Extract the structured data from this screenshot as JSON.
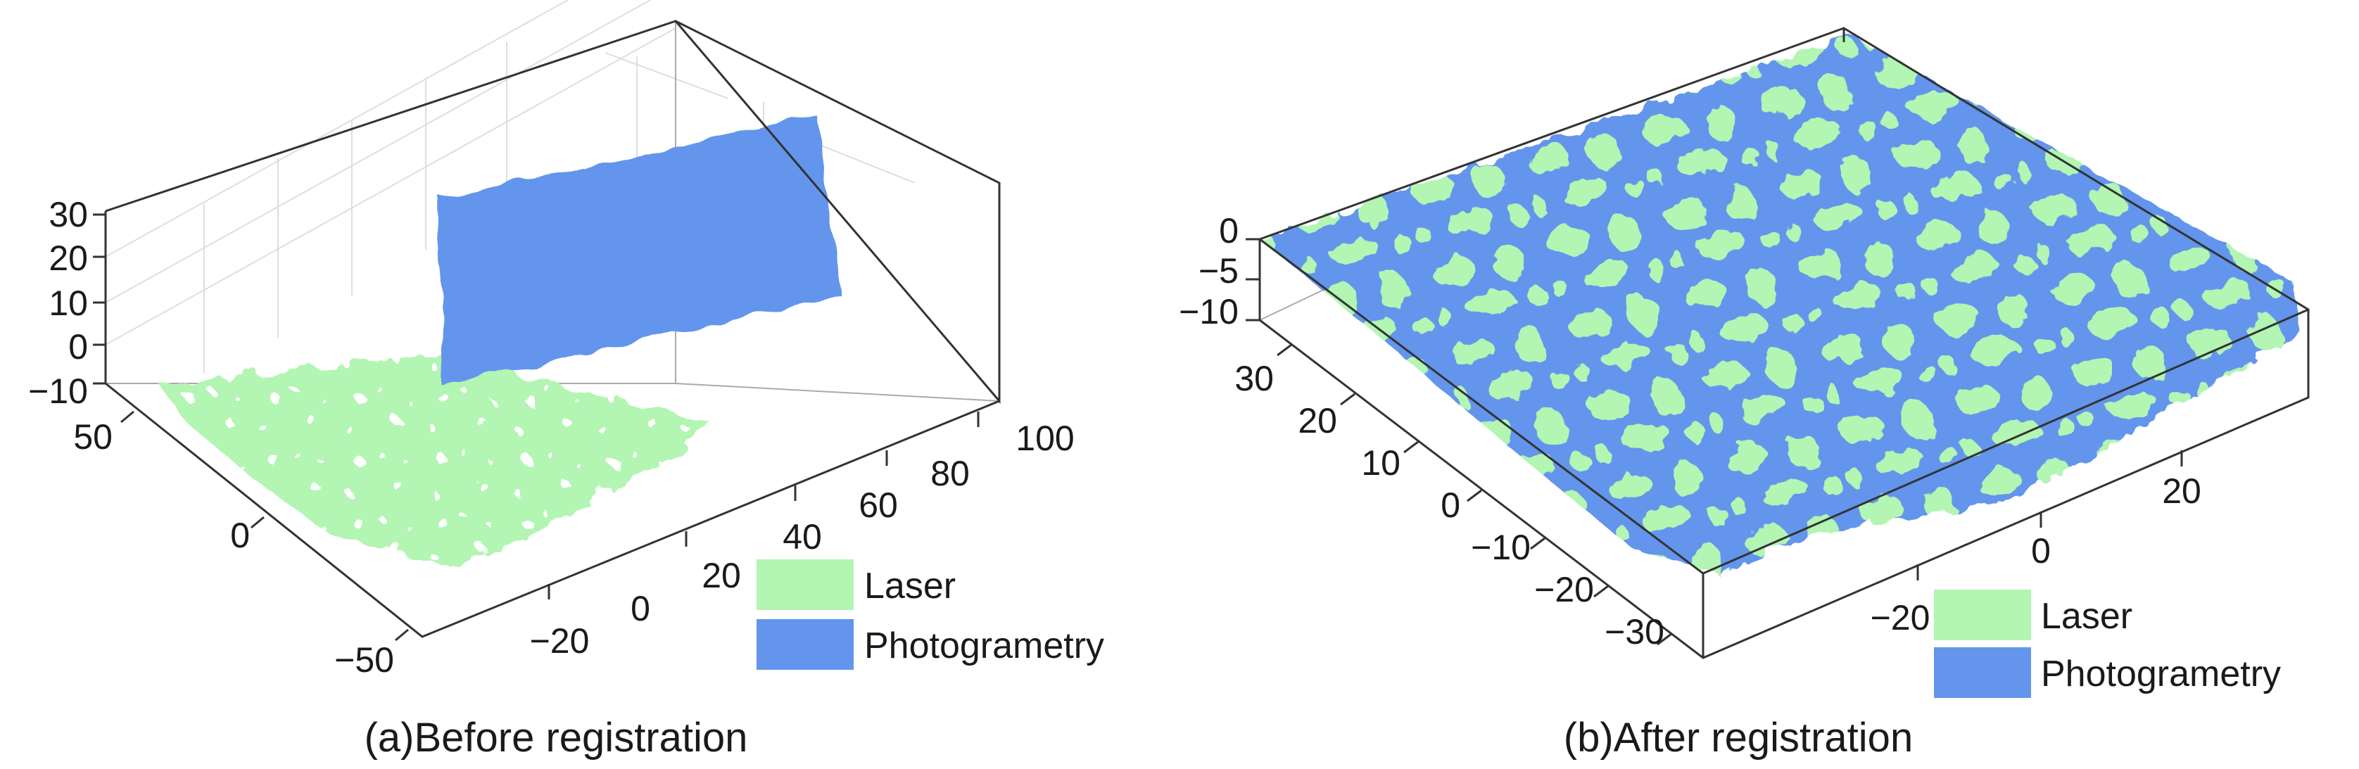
{
  "colors": {
    "laser": "#b3f5b3",
    "photogrammetry": "#6495ed"
  },
  "chart_data": [
    {
      "type": "scatter",
      "panel_id": "a",
      "caption": "(a)Before registration",
      "x_ticks": [
        "-20",
        "0",
        "20",
        "40",
        "60",
        "80",
        "100"
      ],
      "y_ticks": [
        "50",
        "0",
        "-50"
      ],
      "z_ticks": [
        "30",
        "20",
        "10",
        "0",
        "-10"
      ],
      "xlim": [
        -30,
        100
      ],
      "ylim": [
        -55,
        50
      ],
      "zlim": [
        -10,
        30
      ],
      "series": [
        {
          "name": "Laser",
          "color": "#b3f5b3"
        },
        {
          "name": "Photogrametry",
          "color": "#6495ed"
        }
      ]
    },
    {
      "type": "scatter",
      "panel_id": "b",
      "caption": "(b)After registration",
      "x_ticks": [
        "-20",
        "0",
        "20"
      ],
      "y_ticks": [
        "30",
        "20",
        "10",
        "0",
        "-10",
        "-20",
        "-30"
      ],
      "z_ticks": [
        "0",
        "-5",
        "-10"
      ],
      "xlim": [
        -35,
        35
      ],
      "ylim": [
        -35,
        35
      ],
      "zlim": [
        -10,
        0
      ],
      "series": [
        {
          "name": "Laser",
          "color": "#b3f5b3"
        },
        {
          "name": "Photogrametry",
          "color": "#6495ed"
        }
      ]
    }
  ]
}
